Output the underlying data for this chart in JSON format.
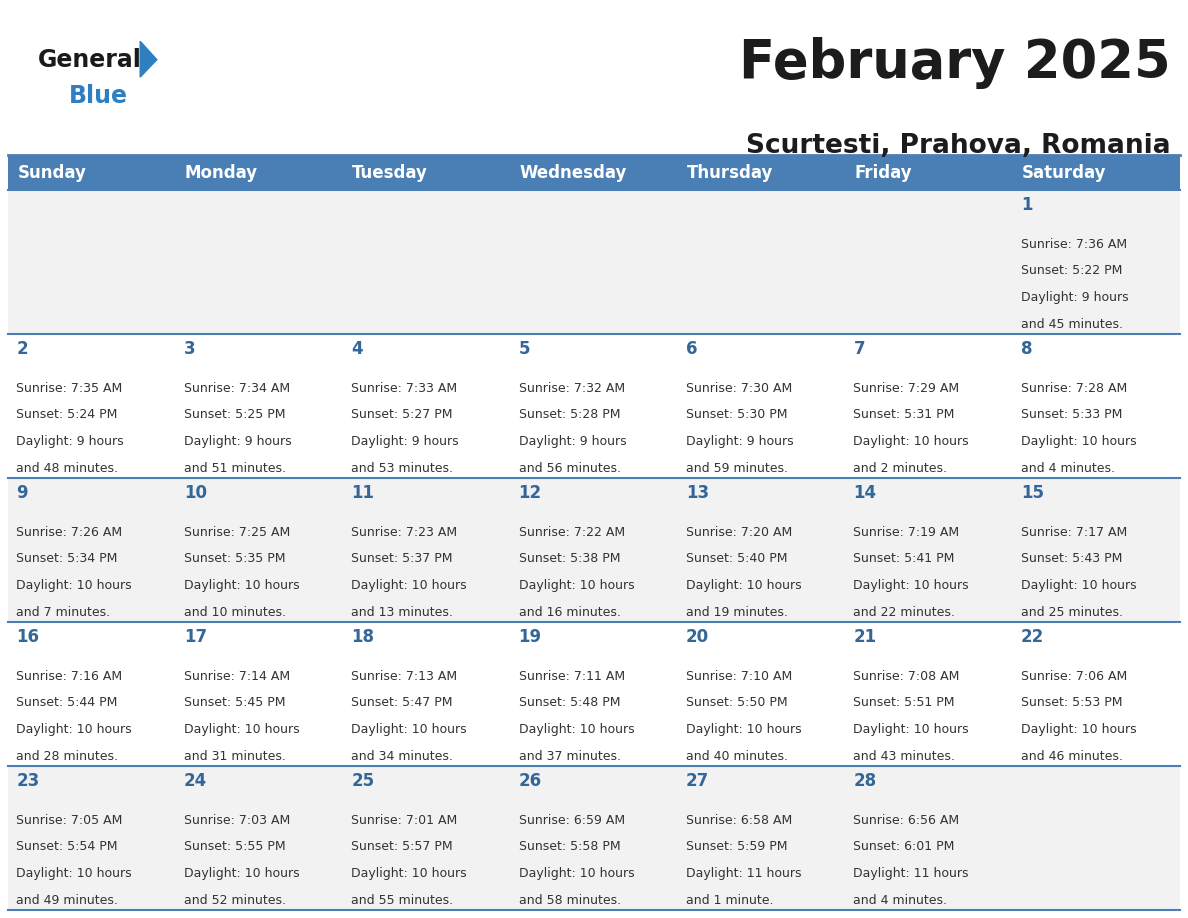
{
  "title": "February 2025",
  "subtitle": "Scurtesti, Prahova, Romania",
  "days_of_week": [
    "Sunday",
    "Monday",
    "Tuesday",
    "Wednesday",
    "Thursday",
    "Friday",
    "Saturday"
  ],
  "header_bg": "#4A7FB5",
  "header_text": "#FFFFFF",
  "cell_bg_odd": "#F2F2F2",
  "cell_bg_even": "#FFFFFF",
  "day_number_color": "#336699",
  "info_text_color": "#333333",
  "border_color": "#4A7FB5",
  "calendar_data": [
    [
      null,
      null,
      null,
      null,
      null,
      null,
      {
        "day": 1,
        "sunrise": "7:36 AM",
        "sunset": "5:22 PM",
        "daylight_line1": "9 hours",
        "daylight_line2": "and 45 minutes."
      }
    ],
    [
      {
        "day": 2,
        "sunrise": "7:35 AM",
        "sunset": "5:24 PM",
        "daylight_line1": "9 hours",
        "daylight_line2": "and 48 minutes."
      },
      {
        "day": 3,
        "sunrise": "7:34 AM",
        "sunset": "5:25 PM",
        "daylight_line1": "9 hours",
        "daylight_line2": "and 51 minutes."
      },
      {
        "day": 4,
        "sunrise": "7:33 AM",
        "sunset": "5:27 PM",
        "daylight_line1": "9 hours",
        "daylight_line2": "and 53 minutes."
      },
      {
        "day": 5,
        "sunrise": "7:32 AM",
        "sunset": "5:28 PM",
        "daylight_line1": "9 hours",
        "daylight_line2": "and 56 minutes."
      },
      {
        "day": 6,
        "sunrise": "7:30 AM",
        "sunset": "5:30 PM",
        "daylight_line1": "9 hours",
        "daylight_line2": "and 59 minutes."
      },
      {
        "day": 7,
        "sunrise": "7:29 AM",
        "sunset": "5:31 PM",
        "daylight_line1": "10 hours",
        "daylight_line2": "and 2 minutes."
      },
      {
        "day": 8,
        "sunrise": "7:28 AM",
        "sunset": "5:33 PM",
        "daylight_line1": "10 hours",
        "daylight_line2": "and 4 minutes."
      }
    ],
    [
      {
        "day": 9,
        "sunrise": "7:26 AM",
        "sunset": "5:34 PM",
        "daylight_line1": "10 hours",
        "daylight_line2": "and 7 minutes."
      },
      {
        "day": 10,
        "sunrise": "7:25 AM",
        "sunset": "5:35 PM",
        "daylight_line1": "10 hours",
        "daylight_line2": "and 10 minutes."
      },
      {
        "day": 11,
        "sunrise": "7:23 AM",
        "sunset": "5:37 PM",
        "daylight_line1": "10 hours",
        "daylight_line2": "and 13 minutes."
      },
      {
        "day": 12,
        "sunrise": "7:22 AM",
        "sunset": "5:38 PM",
        "daylight_line1": "10 hours",
        "daylight_line2": "and 16 minutes."
      },
      {
        "day": 13,
        "sunrise": "7:20 AM",
        "sunset": "5:40 PM",
        "daylight_line1": "10 hours",
        "daylight_line2": "and 19 minutes."
      },
      {
        "day": 14,
        "sunrise": "7:19 AM",
        "sunset": "5:41 PM",
        "daylight_line1": "10 hours",
        "daylight_line2": "and 22 minutes."
      },
      {
        "day": 15,
        "sunrise": "7:17 AM",
        "sunset": "5:43 PM",
        "daylight_line1": "10 hours",
        "daylight_line2": "and 25 minutes."
      }
    ],
    [
      {
        "day": 16,
        "sunrise": "7:16 AM",
        "sunset": "5:44 PM",
        "daylight_line1": "10 hours",
        "daylight_line2": "and 28 minutes."
      },
      {
        "day": 17,
        "sunrise": "7:14 AM",
        "sunset": "5:45 PM",
        "daylight_line1": "10 hours",
        "daylight_line2": "and 31 minutes."
      },
      {
        "day": 18,
        "sunrise": "7:13 AM",
        "sunset": "5:47 PM",
        "daylight_line1": "10 hours",
        "daylight_line2": "and 34 minutes."
      },
      {
        "day": 19,
        "sunrise": "7:11 AM",
        "sunset": "5:48 PM",
        "daylight_line1": "10 hours",
        "daylight_line2": "and 37 minutes."
      },
      {
        "day": 20,
        "sunrise": "7:10 AM",
        "sunset": "5:50 PM",
        "daylight_line1": "10 hours",
        "daylight_line2": "and 40 minutes."
      },
      {
        "day": 21,
        "sunrise": "7:08 AM",
        "sunset": "5:51 PM",
        "daylight_line1": "10 hours",
        "daylight_line2": "and 43 minutes."
      },
      {
        "day": 22,
        "sunrise": "7:06 AM",
        "sunset": "5:53 PM",
        "daylight_line1": "10 hours",
        "daylight_line2": "and 46 minutes."
      }
    ],
    [
      {
        "day": 23,
        "sunrise": "7:05 AM",
        "sunset": "5:54 PM",
        "daylight_line1": "10 hours",
        "daylight_line2": "and 49 minutes."
      },
      {
        "day": 24,
        "sunrise": "7:03 AM",
        "sunset": "5:55 PM",
        "daylight_line1": "10 hours",
        "daylight_line2": "and 52 minutes."
      },
      {
        "day": 25,
        "sunrise": "7:01 AM",
        "sunset": "5:57 PM",
        "daylight_line1": "10 hours",
        "daylight_line2": "and 55 minutes."
      },
      {
        "day": 26,
        "sunrise": "6:59 AM",
        "sunset": "5:58 PM",
        "daylight_line1": "10 hours",
        "daylight_line2": "and 58 minutes."
      },
      {
        "day": 27,
        "sunrise": "6:58 AM",
        "sunset": "5:59 PM",
        "daylight_line1": "11 hours",
        "daylight_line2": "and 1 minute."
      },
      {
        "day": 28,
        "sunrise": "6:56 AM",
        "sunset": "6:01 PM",
        "daylight_line1": "11 hours",
        "daylight_line2": "and 4 minutes."
      },
      null
    ]
  ],
  "figsize": [
    11.88,
    9.18
  ],
  "dpi": 100
}
